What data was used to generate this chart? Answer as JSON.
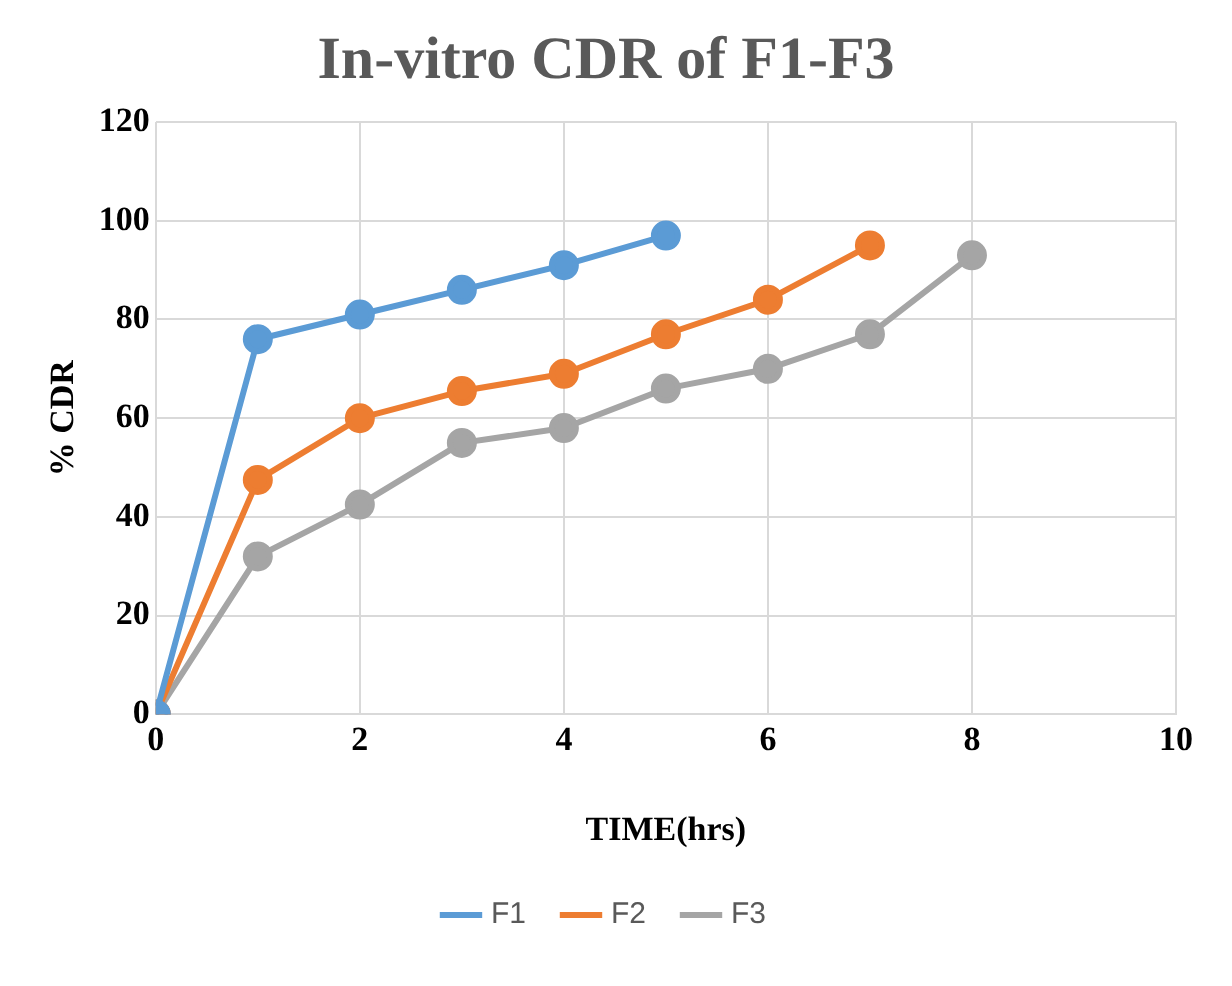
{
  "chart_data": {
    "type": "line",
    "title": "In-vitro CDR of F1-F3",
    "xlabel": "TIME(hrs)",
    "ylabel": "% CDR",
    "xlim": [
      0,
      10
    ],
    "xticks": [
      0,
      2,
      4,
      6,
      8,
      10
    ],
    "ylim": [
      0,
      120
    ],
    "yticks": [
      0,
      20,
      40,
      60,
      80,
      100,
      120
    ],
    "grid": true,
    "legend": "bottom",
    "marker": "circle",
    "series": [
      {
        "name": "F1",
        "color": "#5b9bd5",
        "x": [
          0,
          1,
          2,
          3,
          4,
          5
        ],
        "values": [
          0,
          76,
          81,
          86,
          91,
          97
        ]
      },
      {
        "name": "F2",
        "color": "#ed7d31",
        "x": [
          0,
          1,
          2,
          3,
          4,
          5,
          6,
          7
        ],
        "values": [
          0,
          47.5,
          60,
          65.5,
          69,
          77,
          84,
          95
        ]
      },
      {
        "name": "F3",
        "color": "#a5a5a5",
        "x": [
          0,
          1,
          2,
          3,
          4,
          5,
          6,
          7,
          8
        ],
        "values": [
          0,
          32,
          42.5,
          55,
          58,
          66,
          70,
          77,
          93
        ]
      }
    ]
  }
}
